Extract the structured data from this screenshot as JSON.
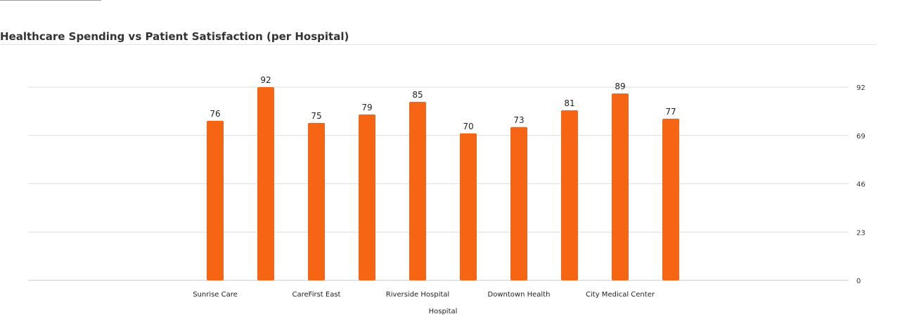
{
  "chart_data": {
    "type": "bar",
    "title": "Healthcare Spending vs Patient Satisfaction (per Hospital)",
    "xlabel": "Hospital",
    "ylabel": "",
    "ylim": [
      0,
      92
    ],
    "yticks": [
      0,
      23,
      46,
      69,
      92
    ],
    "y_axis_side": "right",
    "grid": true,
    "legend": "none",
    "bar_color": "#f56514",
    "categories": [
      "Sunrise Care",
      "",
      "CareFirst East",
      "",
      "Riverside Hospital",
      "",
      "Downtown Health",
      "",
      "City Medical Center",
      ""
    ],
    "values": [
      76,
      92,
      75,
      79,
      85,
      70,
      73,
      81,
      89,
      77
    ]
  }
}
